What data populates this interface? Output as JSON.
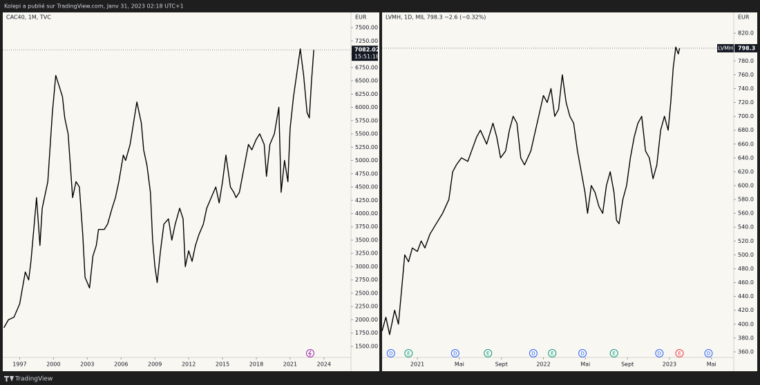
{
  "header": {
    "text": "Kolepi a publié sur TradingView.com, Janv 31, 2023 02:18 UTC+1"
  },
  "footer": {
    "brand": "TradingView"
  },
  "chart_data": [
    {
      "type": "line",
      "title": "CAC40, 1M, TVC",
      "unit": "EUR",
      "color": "#000000",
      "x": [
        1995.6,
        1996.0,
        1996.5,
        1997.0,
        1997.5,
        1997.8,
        1998.0,
        1998.5,
        1998.8,
        1999.0,
        1999.5,
        1999.9,
        2000.2,
        2000.5,
        2000.8,
        2001.0,
        2001.3,
        2001.7,
        2002.0,
        2002.3,
        2002.6,
        2002.8,
        2003.2,
        2003.5,
        2003.8,
        2004.0,
        2004.5,
        2004.8,
        2005.2,
        2005.5,
        2005.8,
        2006.2,
        2006.4,
        2006.8,
        2007.1,
        2007.4,
        2007.8,
        2008.0,
        2008.3,
        2008.6,
        2008.8,
        2009.0,
        2009.2,
        2009.5,
        2009.8,
        2010.2,
        2010.5,
        2010.8,
        2011.2,
        2011.5,
        2011.7,
        2012.0,
        2012.3,
        2012.6,
        2012.9,
        2013.3,
        2013.6,
        2014.0,
        2014.4,
        2014.7,
        2015.0,
        2015.3,
        2015.7,
        2016.0,
        2016.2,
        2016.5,
        2016.9,
        2017.3,
        2017.6,
        2018.0,
        2018.3,
        2018.7,
        2018.9,
        2019.2,
        2019.6,
        2020.0,
        2020.2,
        2020.5,
        2020.8,
        2021.0,
        2021.3,
        2021.5,
        2021.9,
        2022.2,
        2022.5,
        2022.7,
        2022.9,
        2023.1
      ],
      "values": [
        1850,
        2000,
        2050,
        2300,
        2900,
        2750,
        3100,
        4300,
        3400,
        4100,
        4600,
        5900,
        6600,
        6400,
        6200,
        5800,
        5500,
        4300,
        4600,
        4500,
        3600,
        2800,
        2600,
        3200,
        3400,
        3700,
        3700,
        3800,
        4100,
        4300,
        4600,
        5100,
        5000,
        5300,
        5700,
        6100,
        5700,
        5200,
        4900,
        4400,
        3500,
        3000,
        2700,
        3300,
        3800,
        3900,
        3500,
        3800,
        4100,
        3900,
        3000,
        3300,
        3100,
        3400,
        3600,
        3800,
        4100,
        4300,
        4500,
        4200,
        4600,
        5100,
        4500,
        4400,
        4300,
        4400,
        4850,
        5300,
        5200,
        5400,
        5500,
        5300,
        4700,
        5300,
        5500,
        6000,
        4400,
        5000,
        4600,
        5600,
        6200,
        6500,
        7100,
        6600,
        5900,
        5800,
        6500,
        7082.02
      ],
      "last_label": "7082.02",
      "time_label": "15:51:18",
      "xlim": [
        1995.5,
        2026.4
      ],
      "xticks": [
        1997,
        2000,
        2003,
        2006,
        2009,
        2012,
        2015,
        2018,
        2021,
        2024
      ],
      "ylim": [
        1292,
        7786
      ],
      "yticks": [
        {
          "value": 1500,
          "label": "1500.00"
        },
        {
          "value": 1750,
          "label": "1750.00"
        },
        {
          "value": 2000,
          "label": "2000.00"
        },
        {
          "value": 2250,
          "label": "2250.00"
        },
        {
          "value": 2500,
          "label": "2500.00"
        },
        {
          "value": 2750,
          "label": "2750.00"
        },
        {
          "value": 3000,
          "label": "3000.00"
        },
        {
          "value": 3250,
          "label": "3250.00"
        },
        {
          "value": 3500,
          "label": "3500.00"
        },
        {
          "value": 3750,
          "label": "3750.00"
        },
        {
          "value": 4000,
          "label": "4000.00"
        },
        {
          "value": 4250,
          "label": "4250.00"
        },
        {
          "value": 4500,
          "label": "4500.00"
        },
        {
          "value": 4750,
          "label": "4750.00"
        },
        {
          "value": 5000,
          "label": "5000.00"
        },
        {
          "value": 5250,
          "label": "5250.00"
        },
        {
          "value": 5500,
          "label": "5500.00"
        },
        {
          "value": 5750,
          "label": "5750.00"
        },
        {
          "value": 6000,
          "label": "6000.00"
        },
        {
          "value": 6250,
          "label": "6250.00"
        },
        {
          "value": 6500,
          "label": "6500.00"
        },
        {
          "value": 6750,
          "label": "6750.00"
        },
        {
          "value": 7000,
          "label": "7000.00"
        },
        {
          "value": 7250,
          "label": "7250.00"
        },
        {
          "value": 7500,
          "label": "7500.00"
        }
      ]
    },
    {
      "type": "line",
      "title": "LVMH, 1D, MIL  798.3  −2.6 (−0.32%)",
      "unit": "EUR",
      "color": "#000000",
      "x": [
        2020.72,
        2020.75,
        2020.78,
        2020.82,
        2020.85,
        2020.88,
        2020.9,
        2020.93,
        2020.96,
        2021.0,
        2021.03,
        2021.06,
        2021.1,
        2021.15,
        2021.2,
        2021.25,
        2021.28,
        2021.31,
        2021.35,
        2021.4,
        2021.43,
        2021.47,
        2021.5,
        2021.55,
        2021.6,
        2021.63,
        2021.66,
        2021.7,
        2021.73,
        2021.76,
        2021.79,
        2021.82,
        2021.85,
        2021.9,
        2021.95,
        2022.0,
        2022.03,
        2022.06,
        2022.09,
        2022.12,
        2022.15,
        2022.18,
        2022.21,
        2022.24,
        2022.27,
        2022.3,
        2022.33,
        2022.35,
        2022.38,
        2022.41,
        2022.44,
        2022.47,
        2022.5,
        2022.53,
        2022.56,
        2022.58,
        2022.6,
        2022.63,
        2022.66,
        2022.69,
        2022.72,
        2022.75,
        2022.78,
        2022.81,
        2022.84,
        2022.87,
        2022.9,
        2022.93,
        2022.96,
        2022.99,
        2023.01,
        2023.03,
        2023.05,
        2023.07,
        2023.08
      ],
      "values": [
        390,
        410,
        385,
        420,
        400,
        460,
        500,
        490,
        510,
        505,
        520,
        510,
        530,
        545,
        560,
        580,
        620,
        630,
        640,
        635,
        650,
        670,
        680,
        660,
        690,
        670,
        640,
        650,
        680,
        700,
        690,
        640,
        630,
        650,
        690,
        730,
        720,
        740,
        700,
        710,
        760,
        720,
        700,
        690,
        650,
        620,
        590,
        560,
        600,
        590,
        570,
        560,
        600,
        620,
        590,
        550,
        545,
        580,
        600,
        640,
        670,
        690,
        700,
        650,
        640,
        610,
        630,
        680,
        700,
        680,
        720,
        770,
        800,
        790,
        798.3
      ],
      "last_label": "798.3",
      "symbol_label": "LVMH",
      "xlim": [
        2020.72,
        2023.51
      ],
      "xticks": [
        {
          "value": 2021,
          "label": "2021"
        },
        {
          "value": 2021.333,
          "label": "Mai"
        },
        {
          "value": 2021.667,
          "label": "Sept"
        },
        {
          "value": 2022,
          "label": "2022"
        },
        {
          "value": 2022.333,
          "label": "Mai"
        },
        {
          "value": 2022.667,
          "label": "Sept"
        },
        {
          "value": 2023,
          "label": "2023"
        },
        {
          "value": 2023.333,
          "label": "Mai"
        }
      ],
      "ylim": [
        352,
        850
      ],
      "yticks": [
        {
          "value": 360,
          "label": "360.0"
        },
        {
          "value": 380,
          "label": "380.0"
        },
        {
          "value": 400,
          "label": "400.0"
        },
        {
          "value": 420,
          "label": "420.0"
        },
        {
          "value": 440,
          "label": "440.0"
        },
        {
          "value": 460,
          "label": "460.0"
        },
        {
          "value": 480,
          "label": "480.0"
        },
        {
          "value": 500,
          "label": "500.0"
        },
        {
          "value": 520,
          "label": "520.0"
        },
        {
          "value": 540,
          "label": "540.0"
        },
        {
          "value": 560,
          "label": "560.0"
        },
        {
          "value": 580,
          "label": "580.0"
        },
        {
          "value": 600,
          "label": "600.0"
        },
        {
          "value": 620,
          "label": "620.0"
        },
        {
          "value": 640,
          "label": "640.0"
        },
        {
          "value": 660,
          "label": "660.0"
        },
        {
          "value": 680,
          "label": "680.0"
        },
        {
          "value": 700,
          "label": "700.0"
        },
        {
          "value": 720,
          "label": "720.0"
        },
        {
          "value": 740,
          "label": "740.0"
        },
        {
          "value": 760,
          "label": "760.0"
        },
        {
          "value": 780,
          "label": "780.0"
        },
        {
          "value": 800,
          "label": "800.0"
        },
        {
          "value": 820,
          "label": "820.0"
        }
      ],
      "events": [
        {
          "x": 2020.79,
          "label": "D",
          "color": "#2962ff"
        },
        {
          "x": 2020.93,
          "label": "E",
          "color": "#089981"
        },
        {
          "x": 2021.3,
          "label": "D",
          "color": "#2962ff"
        },
        {
          "x": 2021.56,
          "label": "E",
          "color": "#089981"
        },
        {
          "x": 2021.92,
          "label": "D",
          "color": "#2962ff"
        },
        {
          "x": 2022.07,
          "label": "E",
          "color": "#089981"
        },
        {
          "x": 2022.31,
          "label": "D",
          "color": "#2962ff"
        },
        {
          "x": 2022.56,
          "label": "E",
          "color": "#089981"
        },
        {
          "x": 2022.92,
          "label": "D",
          "color": "#2962ff"
        },
        {
          "x": 2023.08,
          "label": "E",
          "color": "#f23645"
        },
        {
          "x": 2023.31,
          "label": "D",
          "color": "#2962ff"
        }
      ]
    }
  ]
}
